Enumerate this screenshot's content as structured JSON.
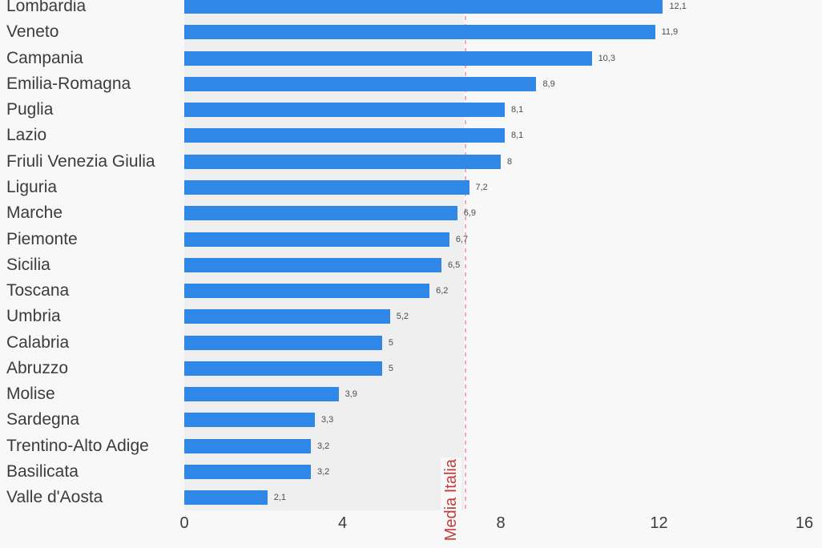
{
  "chart_data": {
    "type": "bar",
    "orientation": "horizontal",
    "title": "",
    "xlabel": "",
    "ylabel": "",
    "grid": "off",
    "legend": "none",
    "xlim": [
      0,
      16
    ],
    "x_ticks": [
      0,
      4,
      8,
      12,
      16
    ],
    "x_tick_labels": [
      "0",
      "4",
      "8",
      "12",
      "16"
    ],
    "categories": [
      "Lombardia",
      "Veneto",
      "Campania",
      "Emilia-Romagna",
      "Puglia",
      "Lazio",
      "Friuli Venezia Giulia",
      "Liguria",
      "Marche",
      "Piemonte",
      "Sicilia",
      "Toscana",
      "Umbria",
      "Calabria",
      "Abruzzo",
      "Molise",
      "Sardegna",
      "Trentino-Alto Adige",
      "Basilicata",
      "Valle d'Aosta"
    ],
    "values": [
      12.1,
      11.9,
      10.3,
      8.9,
      8.1,
      8.1,
      8,
      7.2,
      6.9,
      6.7,
      6.5,
      6.2,
      5.2,
      5,
      5,
      3.9,
      3.3,
      3.2,
      3.2,
      2.1
    ],
    "value_labels": [
      "12,1",
      "11,9",
      "10,3",
      "8,9",
      "8,1",
      "8,1",
      "8",
      "7,2",
      "6,9",
      "6,7",
      "6,5",
      "6,2",
      "5,2",
      "5",
      "5",
      "3,9",
      "3,3",
      "3,2",
      "3,2",
      "2,1"
    ],
    "reference_line": {
      "label": "Media Italia",
      "value": 7.1
    },
    "colors": {
      "bar": "#2f88e8",
      "band": "#efeff0",
      "background": "#f8f8f9",
      "reference_line": "#f2abb4",
      "reference_text": "#c23b3b",
      "category_label": "#3c3c3c",
      "value_label": "#4d4d4d",
      "tick_label": "#3c3c3c"
    }
  }
}
